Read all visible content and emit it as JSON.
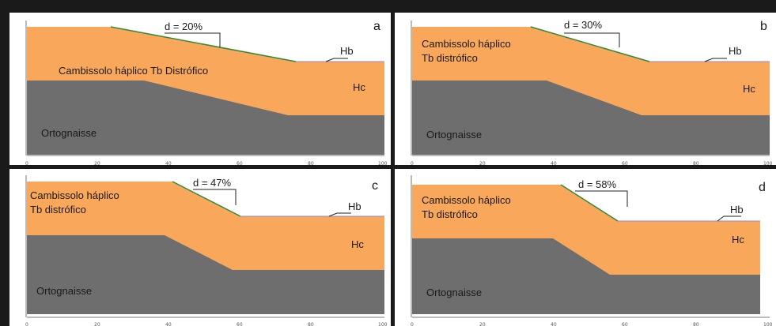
{
  "panels": [
    {
      "letter": "a",
      "slope": "d = 20%",
      "soil": "Cambissolo háplico Tb Distrófico",
      "soil_line2": "",
      "hb": "Hb",
      "hc": "Hc",
      "rock": "Ortognaisse",
      "x_ticks": [
        "0",
        "20",
        "40",
        "60",
        "80",
        "100"
      ]
    },
    {
      "letter": "b",
      "slope": "d = 30%",
      "soil": "Cambissolo háplico",
      "soil_line2": "Tb distrófico",
      "hb": "Hb",
      "hc": "Hc",
      "rock": "Ortognaisse",
      "x_ticks": [
        "0",
        "20",
        "40",
        "60",
        "80",
        "100"
      ]
    },
    {
      "letter": "c",
      "slope": "d = 47%",
      "soil": "Cambissolo háplico",
      "soil_line2": "Tb distrófico",
      "hb": "Hb",
      "hc": "Hc",
      "rock": "Ortognaisse",
      "x_ticks": [
        "0",
        "20",
        "40",
        "60",
        "80",
        "100"
      ]
    },
    {
      "letter": "d",
      "slope": "d = 58%",
      "soil": "Cambissolo háplico",
      "soil_line2": "Tb distrófico",
      "hb": "Hb",
      "hc": "Hc",
      "rock": "Ortognaisse",
      "x_ticks": [
        "0",
        "20",
        "40",
        "60",
        "80",
        "100"
      ]
    }
  ],
  "colors": {
    "soil": "#f9a75a",
    "rock": "#6e6e6e",
    "surface_line": "#2e8b3a",
    "horizon_line": "#8a8ad8"
  }
}
